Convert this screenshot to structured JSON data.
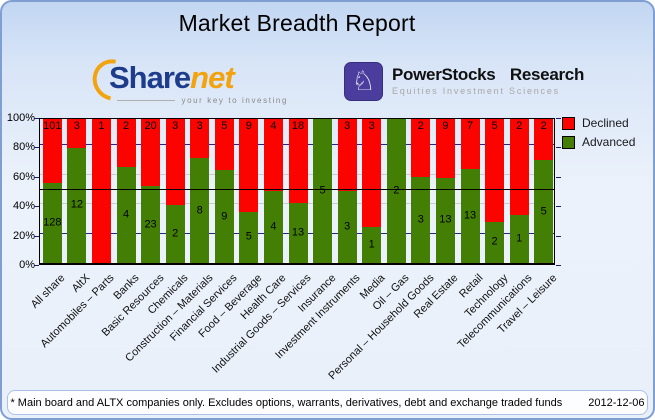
{
  "title": "Market Breadth Report",
  "logos": {
    "sharenet": {
      "word_share": "Share",
      "word_net": "net",
      "tagline": "your key to investing"
    },
    "powerstocks": {
      "title": "PowerStocks Research",
      "subtitle": "Equities Investment Sciences",
      "icon": "chess-knight-icon",
      "icon_glyph": "♘",
      "icon_bg": "#4b3d9d"
    }
  },
  "chart_data": {
    "type": "bar",
    "stacked": true,
    "normalized": "percent",
    "title": "Market Breadth Report",
    "xlabel": "",
    "ylabel": "",
    "ylim": [
      0,
      100
    ],
    "y_ticks": [
      "0%",
      "20%",
      "40%",
      "60%",
      "80%",
      "100%"
    ],
    "grid": true,
    "legend_position": "top-right",
    "reference_line_pct": 50,
    "categories": [
      "All share",
      "AltX",
      "Automobiles – Parts",
      "Banks",
      "Basic Resources",
      "Chemicals",
      "Construction – Materials",
      "Financial Services",
      "Food – Beverage",
      "Health Care",
      "Industrial Goods – Services",
      "Insurance",
      "Investment Instruments",
      "Media",
      "Oil – Gas",
      "Personal – Household Goods",
      "Real Estate",
      "Retail",
      "Technology",
      "Telecommunications",
      "Travel – Leisure"
    ],
    "series": [
      {
        "name": "Declined",
        "color": "#fb0400",
        "values": [
          101,
          3,
          1,
          2,
          20,
          3,
          3,
          5,
          9,
          4,
          18,
          0,
          3,
          3,
          0,
          2,
          9,
          7,
          5,
          2,
          2
        ]
      },
      {
        "name": "Advanced",
        "color": "#447f05",
        "values": [
          128,
          12,
          0,
          4,
          23,
          2,
          8,
          9,
          5,
          4,
          13,
          5,
          3,
          1,
          2,
          3,
          13,
          13,
          2,
          1,
          5
        ]
      }
    ],
    "colors": {
      "grid_major": "#24248f",
      "grid_minor": "#c6cdd4",
      "reference_line": "#000000"
    }
  },
  "footer": {
    "note": "* Main board and ALTX companies only. Excludes options, warrants, derivatives, debt and exchange traded funds",
    "date": "2012-12-06"
  }
}
